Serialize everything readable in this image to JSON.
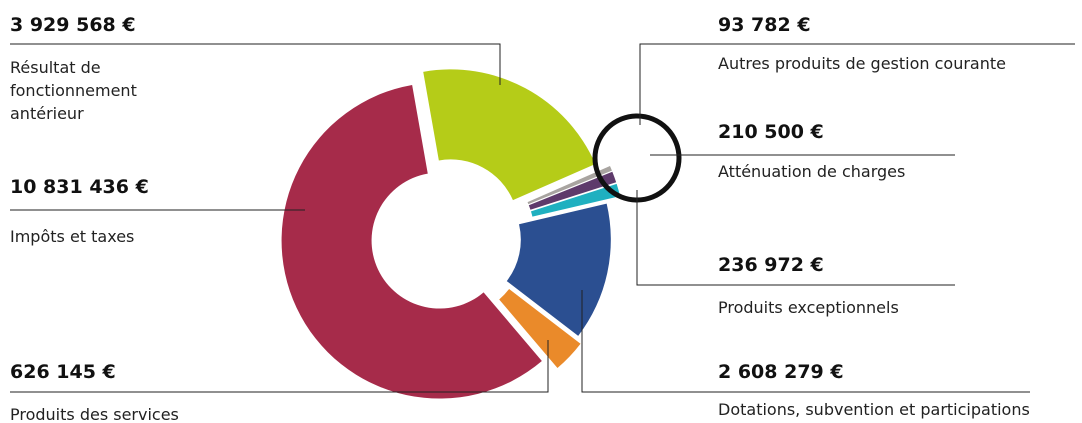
{
  "chart_data": {
    "type": "pie",
    "donut": true,
    "categories": [
      "Résultat de fonctionnement antérieur",
      "Autres produits de gestion courante",
      "Atténuation de charges",
      "Produits exceptionnels",
      "Dotations, subvention et participations",
      "Produits des services",
      "Impôts et taxes"
    ],
    "values": [
      3929568,
      93782,
      210500,
      236972,
      2608279,
      626145,
      10831436
    ],
    "value_labels": [
      "3 929 568 €",
      "93 782 €",
      "210 500 €",
      "236 972 €",
      "2 608 279 €",
      "626 145 €",
      "10 831 436 €"
    ],
    "colors": [
      "#b5cc18",
      "#a8a4a0",
      "#5e3a6b",
      "#1fb0c0",
      "#2b4f91",
      "#ea8a2a",
      "#a62b4a"
    ]
  }
}
